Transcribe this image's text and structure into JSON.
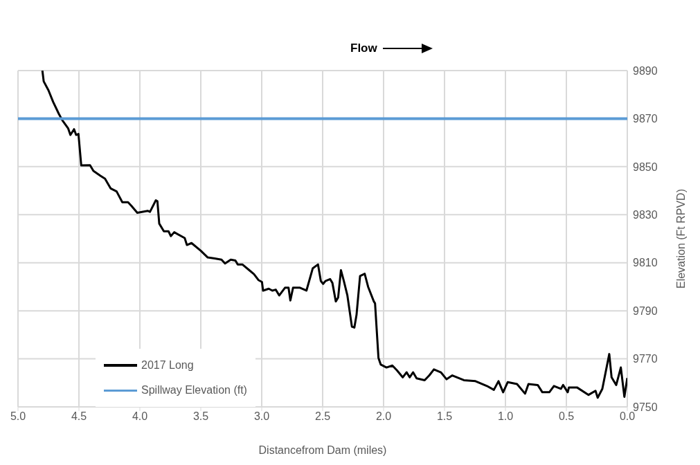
{
  "chart_data": {
    "type": "line",
    "xlabel": "Distancefrom Dam (miles)",
    "ylabel": "Elevation (Ft RPVD)",
    "xlim": [
      5,
      0
    ],
    "xticks": [
      {
        "value": 5,
        "label": "5.0"
      },
      {
        "value": 4.5,
        "label": "4.5"
      },
      {
        "value": 4,
        "label": "4.0"
      },
      {
        "value": 3.5,
        "label": "3.5"
      },
      {
        "value": 3,
        "label": "3.0"
      },
      {
        "value": 2.5,
        "label": "2.5"
      },
      {
        "value": 2,
        "label": "2.0"
      },
      {
        "value": 1.5,
        "label": "1.5"
      },
      {
        "value": 1,
        "label": "1.0"
      },
      {
        "value": 0.5,
        "label": "0.5"
      },
      {
        "value": 0,
        "label": "0.0"
      }
    ],
    "ylim": [
      9750,
      9890
    ],
    "yticks": [
      9750,
      9770,
      9790,
      9810,
      9830,
      9850,
      9870,
      9890
    ],
    "grid": true,
    "legend": "bottom left",
    "marker": "none",
    "line_style": "solid",
    "annotations": [
      "Flow"
    ],
    "series": [
      {
        "name": "2017 Long",
        "color": "#000000",
        "x": [
          4.8,
          4.789,
          4.75,
          4.712,
          4.665,
          4.636,
          4.589,
          4.57,
          4.54,
          4.523,
          4.504,
          4.481,
          4.409,
          4.381,
          4.324,
          4.286,
          4.239,
          4.191,
          4.144,
          4.097,
          4.068,
          4.021,
          3.936,
          3.917,
          3.869,
          3.856,
          3.841,
          3.803,
          3.765,
          3.746,
          3.718,
          3.632,
          3.614,
          3.576,
          3.5,
          3.443,
          3.386,
          3.33,
          3.301,
          3.254,
          3.216,
          3.197,
          3.159,
          3.102,
          3.064,
          3.027,
          2.998,
          2.989,
          2.942,
          2.913,
          2.885,
          2.856,
          2.809,
          2.78,
          2.765,
          2.743,
          2.686,
          2.633,
          2.581,
          2.538,
          2.515,
          2.496,
          2.477,
          2.439,
          2.42,
          2.392,
          2.373,
          2.35,
          2.326,
          2.297,
          2.26,
          2.24,
          2.222,
          2.193,
          2.155,
          2.127,
          2.08,
          2.07,
          2.042,
          2.023,
          1.976,
          1.928,
          1.89,
          1.843,
          1.811,
          1.786,
          1.758,
          1.729,
          1.663,
          1.625,
          1.587,
          1.53,
          1.483,
          1.436,
          1.341,
          1.246,
          1.152,
          1.095,
          1.057,
          1.019,
          0.981,
          0.905,
          0.839,
          0.811,
          0.735,
          0.697,
          0.64,
          0.602,
          0.545,
          0.527,
          0.489,
          0.479,
          0.413,
          0.318,
          0.261,
          0.243,
          0.205,
          0.148,
          0.129,
          0.091,
          0.053,
          0.024,
          0
        ],
        "values": [
          9890,
          9885.5,
          9881.8,
          9877,
          9872,
          9869.3,
          9866,
          9863.2,
          9865.6,
          9863.2,
          9863.6,
          9850.5,
          9850.6,
          9848.2,
          9846.2,
          9845,
          9840.9,
          9839.7,
          9835.2,
          9835.2,
          9833.6,
          9830.8,
          9831.6,
          9831.2,
          9836,
          9835.6,
          9826.3,
          9823.1,
          9823.1,
          9821.1,
          9822.7,
          9820.3,
          9817.4,
          9818.2,
          9815,
          9812.2,
          9811.8,
          9811.3,
          9809.7,
          9811.3,
          9810.9,
          9809.3,
          9809.3,
          9806.9,
          9805.3,
          9802.8,
          9802,
          9798.4,
          9799.2,
          9798.4,
          9798.8,
          9796.4,
          9799.6,
          9799.6,
          9794.3,
          9799.6,
          9799.6,
          9798.4,
          9807.7,
          9809.3,
          9802.4,
          9801.2,
          9802.4,
          9803.2,
          9801.6,
          9793.9,
          9795.5,
          9806.9,
          9802.4,
          9796.4,
          9783.4,
          9783,
          9788.3,
          9804.5,
          9805.4,
          9800,
          9793.9,
          9793.1,
          9770.4,
          9767.6,
          9766.4,
          9767.2,
          9765.2,
          9762.3,
          9764.4,
          9762.3,
          9764.4,
          9761.9,
          9761.1,
          9763.1,
          9765.6,
          9764.4,
          9761.5,
          9763.1,
          9761.1,
          9760.7,
          9758.7,
          9757.1,
          9760.7,
          9756.1,
          9760.3,
          9759.5,
          9755.5,
          9759.5,
          9759.1,
          9756.1,
          9756.1,
          9758.7,
          9757.5,
          9759.1,
          9756.1,
          9758.1,
          9758.1,
          9755,
          9756.7,
          9753.8,
          9757.5,
          9772,
          9762.3,
          9759.1,
          9766.4,
          9754.2,
          9762
        ]
      },
      {
        "name": "Spillway Elevation (ft)",
        "color": "#5b9bd5",
        "x": [
          5,
          0
        ],
        "values": [
          9870,
          9870
        ]
      }
    ]
  }
}
